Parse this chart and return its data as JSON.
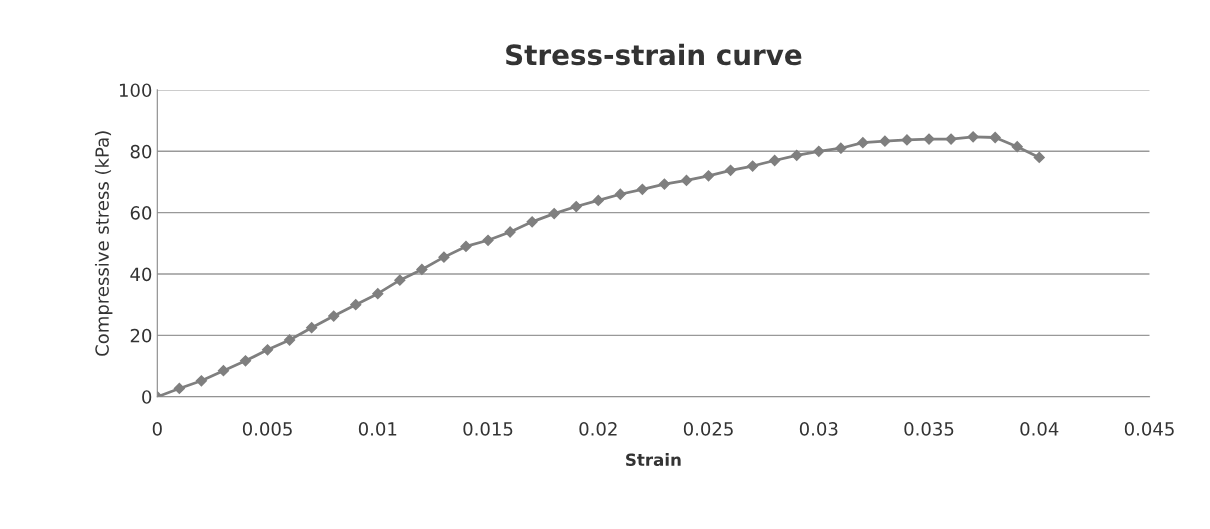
{
  "chart_data": {
    "type": "line",
    "title": "Stress-strain curve",
    "xlabel": "Strain",
    "ylabel": "Compressive stress (kPa)",
    "x": [
      0,
      0.001,
      0.002,
      0.003,
      0.004,
      0.005,
      0.006,
      0.007,
      0.008,
      0.009,
      0.01,
      0.011,
      0.012,
      0.013,
      0.014,
      0.015,
      0.016,
      0.017,
      0.018,
      0.019,
      0.02,
      0.021,
      0.022,
      0.023,
      0.024,
      0.025,
      0.026,
      0.027,
      0.028,
      0.029,
      0.03,
      0.031,
      0.032,
      0.033,
      0.034,
      0.035,
      0.036,
      0.037,
      0.038,
      0.039,
      0.04
    ],
    "series": [
      {
        "color": "#7f7f7f",
        "values": [
          0,
          2.7,
          5.2,
          8.5,
          11.7,
          15.3,
          18.5,
          22.5,
          26.3,
          30,
          33.6,
          38,
          41.5,
          45.5,
          49,
          51,
          53.7,
          57,
          59.7,
          62,
          64,
          66,
          67.6,
          69.3,
          70.5,
          72,
          73.8,
          75.2,
          77,
          78.7,
          80,
          81,
          82.8,
          83.3,
          83.7,
          84,
          84,
          84.7,
          84.5,
          81.5,
          78
        ]
      }
    ],
    "xlim": [
      0,
      0.045
    ],
    "xticks": [
      0,
      0.005,
      0.01,
      0.015,
      0.02,
      0.025,
      0.03,
      0.035,
      0.04,
      0.045
    ],
    "ylim": [
      0,
      100
    ],
    "yticks": [
      0,
      20,
      40,
      60,
      80,
      100
    ],
    "grid": "y",
    "marker": "diamond",
    "line_style": "solid"
  }
}
